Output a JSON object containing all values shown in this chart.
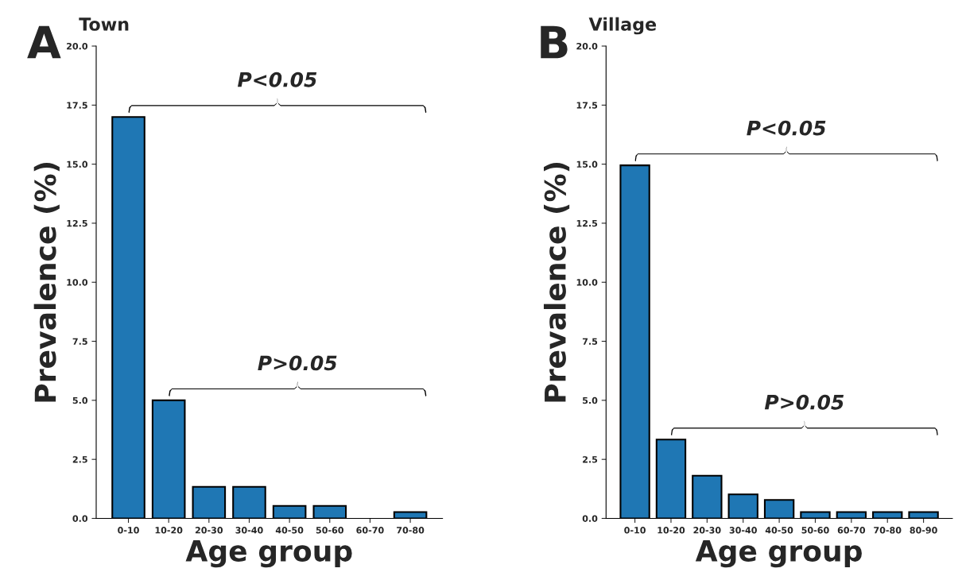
{
  "chart_data": [
    {
      "type": "bar",
      "title": "Town",
      "xlabel": "Age group",
      "ylabel": "Prevalence (%)",
      "categories": [
        "0-10",
        "10-20",
        "20-30",
        "30-40",
        "40-50",
        "50-60",
        "60-70",
        "70-80"
      ],
      "series": [
        {
          "color": "#1f77b4",
          "values": [
            17.0,
            5.0,
            1.34,
            1.34,
            0.53,
            0.53,
            0,
            0.27
          ]
        }
      ],
      "ylim": [
        0,
        20
      ],
      "yticks": [
        {
          "value": 0,
          "label": "0.0"
        },
        {
          "value": 2.5,
          "label": "2.5"
        },
        {
          "value": 5,
          "label": "5.0"
        },
        {
          "value": 7.5,
          "label": "7.5"
        },
        {
          "value": 10,
          "label": "10.0"
        },
        {
          "value": 12.5,
          "label": "12.5"
        },
        {
          "value": 15,
          "label": "15.0"
        },
        {
          "value": 17.5,
          "label": "17.5"
        },
        {
          "value": 20,
          "label": "20.0"
        }
      ],
      "grid": false,
      "legend": false,
      "annotations": [
        "A",
        "P<0.05",
        "P>0.05"
      ]
    },
    {
      "type": "bar",
      "title": "Village",
      "xlabel": "Age group",
      "ylabel": "Prevalence (%)",
      "categories": [
        "0-10",
        "10-20",
        "20-30",
        "30-40",
        "40-50",
        "50-60",
        "60-70",
        "70-80",
        "80-90"
      ],
      "series": [
        {
          "color": "#1f77b4",
          "values": [
            14.95,
            3.34,
            1.81,
            1.02,
            0.78,
            0.27,
            0.27,
            0.27,
            0.27
          ]
        }
      ],
      "ylim": [
        0,
        20
      ],
      "yticks": [
        {
          "value": 0,
          "label": "0.0"
        },
        {
          "value": 2.5,
          "label": "2.5"
        },
        {
          "value": 5,
          "label": "5.0"
        },
        {
          "value": 7.5,
          "label": "7.5"
        },
        {
          "value": 10,
          "label": "10.0"
        },
        {
          "value": 12.5,
          "label": "12.5"
        },
        {
          "value": 15,
          "label": "15.0"
        },
        {
          "value": 17.5,
          "label": "17.5"
        },
        {
          "value": 20,
          "label": "20.0"
        }
      ],
      "grid": false,
      "legend": false,
      "annotations": [
        "B",
        "P<0.05",
        "P>0.05"
      ]
    }
  ]
}
